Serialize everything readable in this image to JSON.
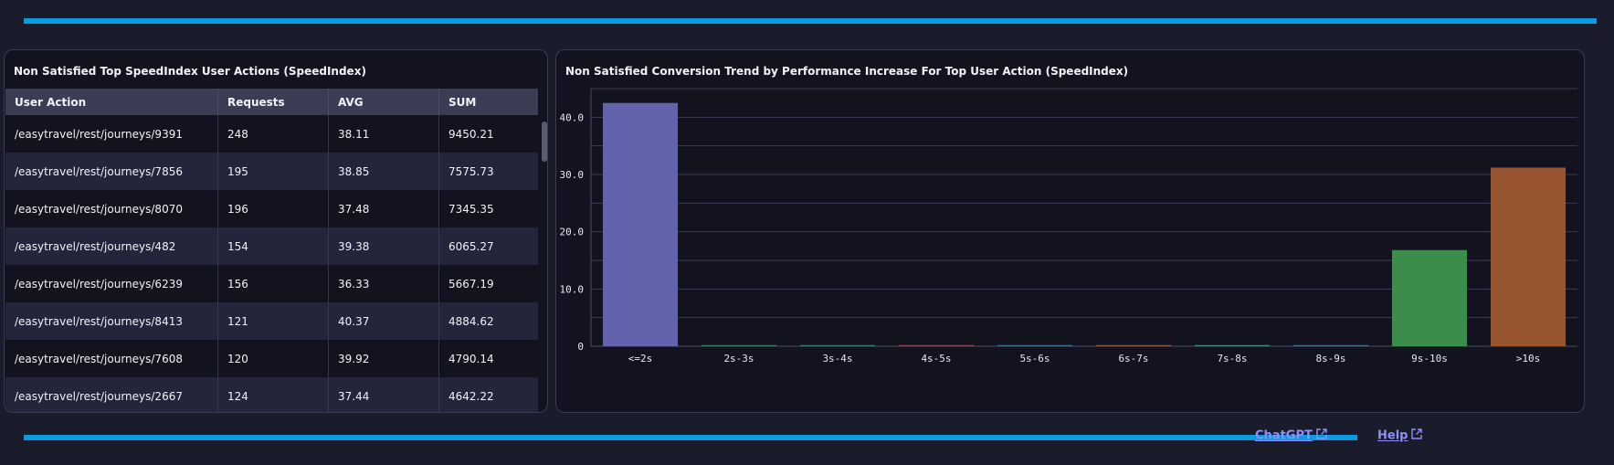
{
  "left_panel": {
    "title": "Non Satisfied Top SpeedIndex User Actions (SpeedIndex)",
    "columns": [
      "User Action",
      "Requests",
      "AVG",
      "SUM"
    ],
    "rows": [
      [
        "/easytravel/rest/journeys/9391",
        "248",
        "38.11",
        "9450.21"
      ],
      [
        "/easytravel/rest/journeys/7856",
        "195",
        "38.85",
        "7575.73"
      ],
      [
        "/easytravel/rest/journeys/8070",
        "196",
        "37.48",
        "7345.35"
      ],
      [
        "/easytravel/rest/journeys/482",
        "154",
        "39.38",
        "6065.27"
      ],
      [
        "/easytravel/rest/journeys/6239",
        "156",
        "36.33",
        "5667.19"
      ],
      [
        "/easytravel/rest/journeys/8413",
        "121",
        "40.37",
        "4884.62"
      ],
      [
        "/easytravel/rest/journeys/7608",
        "120",
        "39.92",
        "4790.14"
      ],
      [
        "/easytravel/rest/journeys/2667",
        "124",
        "37.44",
        "4642.22"
      ]
    ]
  },
  "right_panel": {
    "title": "Non Satisfied Conversion Trend by Performance Increase For Top User Action (SpeedIndex)"
  },
  "chart_data": {
    "type": "bar",
    "categories": [
      "<=2s",
      "2s-3s",
      "3s-4s",
      "4s-5s",
      "5s-6s",
      "6s-7s",
      "7s-8s",
      "8s-9s",
      "9s-10s",
      ">10s"
    ],
    "values": [
      42.5,
      0.2,
      0.2,
      0.2,
      0.2,
      0.2,
      0.2,
      0.2,
      16.8,
      31.2
    ],
    "colors": [
      "#6262ad",
      "#3f7f6a",
      "#3d7a78",
      "#8a4a5a",
      "#3e6d8a",
      "#8a5a44",
      "#3f8a78",
      "#4a6a8a",
      "#3a8e4a",
      "#97542f"
    ],
    "yticks": [
      0,
      10,
      20,
      30,
      40
    ],
    "ytick_labels": [
      "0",
      "10.0",
      "20.0",
      "30.0",
      "40.0"
    ],
    "ylim": [
      0,
      45
    ],
    "grid": true,
    "title": "",
    "xlabel": "",
    "ylabel": ""
  },
  "footer": {
    "chatgpt_label": "ChatGPT",
    "help_label": "Help"
  }
}
